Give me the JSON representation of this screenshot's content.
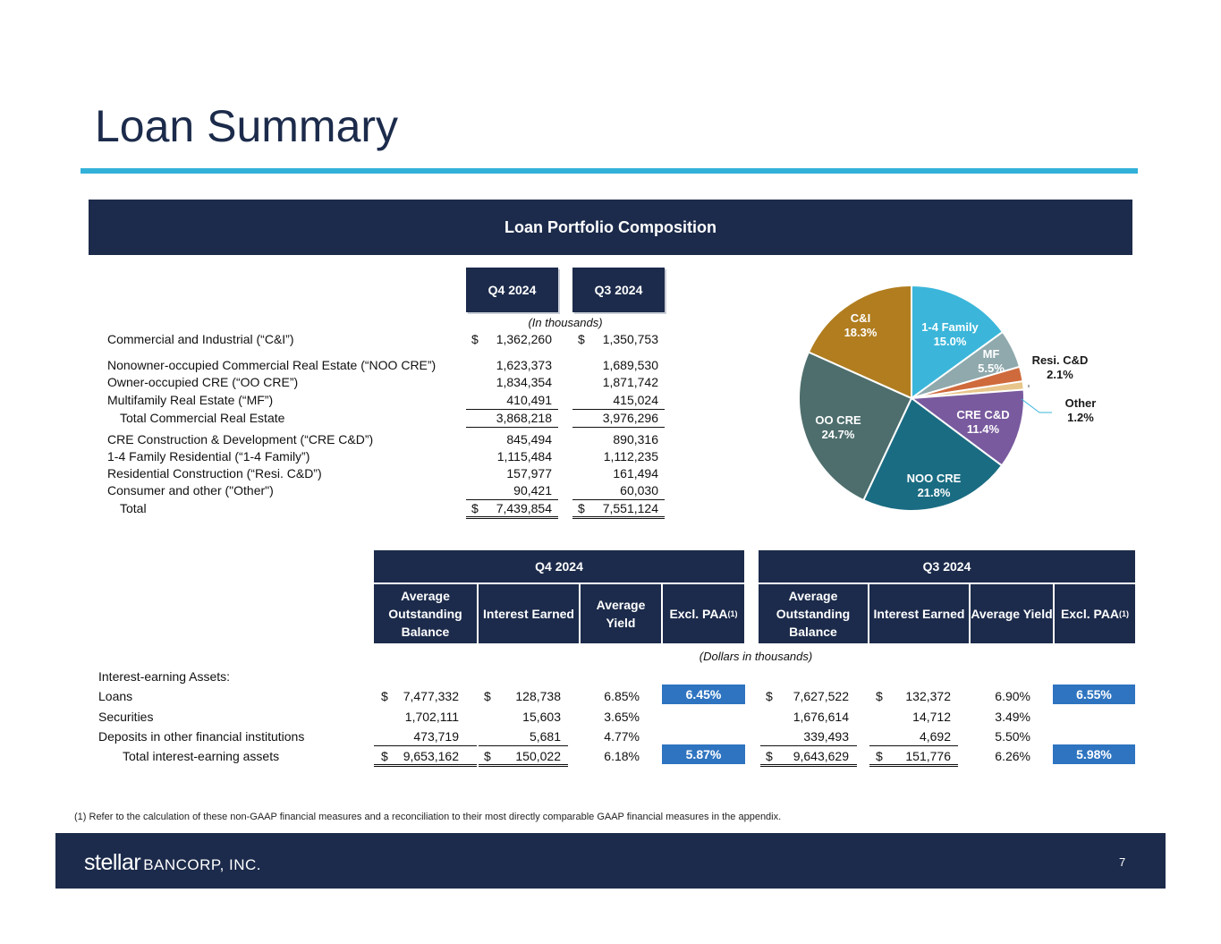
{
  "title": "Loan Summary",
  "banner": "Loan Portfolio Composition",
  "composition": {
    "col_headers": [
      "Q4 2024",
      "Q3 2024"
    ],
    "units_note": "(In thousands)",
    "rows": [
      {
        "label": "Commercial and Industrial (“C&I”)",
        "q4": "1,362,260",
        "q3": "1,350,753",
        "dollar": true
      },
      {
        "label": "Nonowner-occupied Commercial Real Estate (“NOO CRE”)",
        "q4": "1,623,373",
        "q3": "1,689,530"
      },
      {
        "label": "Owner-occupied CRE (“OO CRE”)",
        "q4": "1,834,354",
        "q3": "1,871,742"
      },
      {
        "label": "Multifamily Real Estate (“MF”)",
        "q4": "410,491",
        "q3": "415,024"
      },
      {
        "label": "Total Commercial Real Estate",
        "q4": "3,868,218",
        "q3": "3,976,296"
      },
      {
        "label": "CRE Construction & Development (“CRE C&D”)",
        "q4": "845,494",
        "q3": "890,316"
      },
      {
        "label": "1-4 Family Residential (“1-4 Family”)",
        "q4": "1,115,484",
        "q3": "1,112,235"
      },
      {
        "label": "Residential Construction (“Resi. C&D”)",
        "q4": "157,977",
        "q3": "161,494"
      },
      {
        "label": "Consumer and other (\"Other\")",
        "q4": "90,421",
        "q3": "60,030"
      },
      {
        "label": "Total",
        "q4": "7,439,854",
        "q3": "7,551,124",
        "dollar": true
      }
    ],
    "dollar_sign": "$"
  },
  "chart_data": {
    "type": "pie",
    "title": "",
    "slices": [
      {
        "name": "1-4 Family",
        "value": 15.0,
        "label": "15.0%",
        "color": "#3bb6da"
      },
      {
        "name": "MF",
        "value": 5.5,
        "label": "5.5%",
        "color": "#8fa9ad"
      },
      {
        "name": "Resi. C&D",
        "value": 2.1,
        "label": "2.1%",
        "color": "#cf6a3c"
      },
      {
        "name": "Other",
        "value": 1.2,
        "label": "1.2%",
        "color": "#e8c58a"
      },
      {
        "name": "CRE C&D",
        "value": 11.4,
        "label": "11.4%",
        "color": "#795a9e"
      },
      {
        "name": "NOO CRE",
        "value": 21.8,
        "label": "21.8%",
        "color": "#1a6c82"
      },
      {
        "name": "OO CRE",
        "value": 24.7,
        "label": "24.7%",
        "color": "#4d6e6c"
      },
      {
        "name": "C&I",
        "value": 18.3,
        "label": "18.3%",
        "color": "#b17d1f"
      }
    ]
  },
  "yield_table": {
    "periods": [
      "Q4 2024",
      "Q3 2024"
    ],
    "col_headers": [
      "Average Outstanding Balance",
      "Interest Earned",
      "Average Yield",
      "Excl. PAA"
    ],
    "footnote_mark": "(1)",
    "units_note": "(Dollars in thousands)",
    "section_label": "Interest-earning Assets:",
    "dollar_sign": "$",
    "rows": [
      {
        "label": "Loans",
        "q4": [
          "7,477,332",
          "128,738",
          "6.85%",
          "6.45%"
        ],
        "q3": [
          "7,627,522",
          "132,372",
          "6.90%",
          "6.55%"
        ]
      },
      {
        "label": "Securities",
        "q4": [
          "1,702,111",
          "15,603",
          "3.65%",
          ""
        ],
        "q3": [
          "1,676,614",
          "14,712",
          "3.49%",
          ""
        ]
      },
      {
        "label": "Deposits in other financial institutions",
        "q4": [
          "473,719",
          "5,681",
          "4.77%",
          ""
        ],
        "q3": [
          "339,493",
          "4,692",
          "5.50%",
          ""
        ]
      },
      {
        "label": "Total interest-earning assets",
        "q4": [
          "9,653,162",
          "150,022",
          "6.18%",
          "5.87%"
        ],
        "q3": [
          "9,643,629",
          "151,776",
          "6.26%",
          "5.98%"
        ]
      }
    ]
  },
  "footnote": "(1) Refer to the calculation of these non-GAAP financial measures and a reconciliation to their most directly comparable GAAP financial measures in the appendix.",
  "footer": {
    "logo_main": "stellar",
    "logo_rest": "BANCORP, INC.",
    "page_number": "7"
  }
}
